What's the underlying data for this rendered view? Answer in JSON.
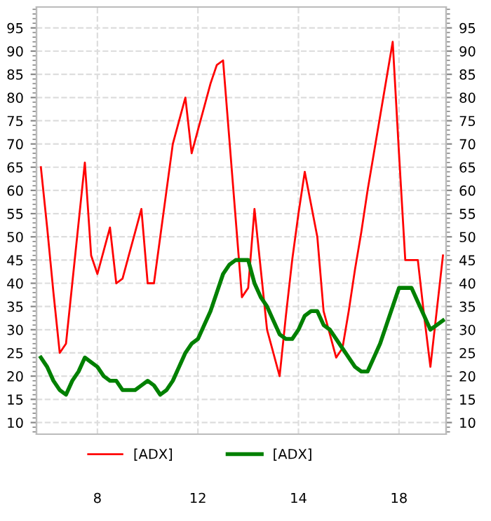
{
  "chart_data": {
    "type": "line",
    "categories": [
      null,
      null,
      null,
      null,
      null,
      null,
      null,
      null,
      null,
      "8",
      null,
      null,
      null,
      null,
      null,
      null,
      null,
      null,
      null,
      null,
      null,
      null,
      null,
      null,
      null,
      "12",
      null,
      null,
      null,
      null,
      null,
      null,
      null,
      null,
      null,
      null,
      null,
      null,
      null,
      null,
      null,
      "14",
      null,
      null,
      null,
      null,
      null,
      null,
      null,
      null,
      null,
      null,
      null,
      null,
      null,
      null,
      null,
      "18",
      null,
      null,
      null,
      null,
      null,
      null,
      null
    ],
    "ylim": [
      7.5,
      99.5
    ],
    "yticks": [
      10,
      15,
      20,
      25,
      30,
      35,
      40,
      45,
      50,
      55,
      60,
      65,
      70,
      75,
      80,
      85,
      90,
      95
    ],
    "y2lim": [
      7.5,
      99.5
    ],
    "y2ticks": [
      10,
      15,
      20,
      25,
      30,
      35,
      40,
      45,
      50,
      55,
      60,
      65,
      70,
      75,
      80,
      85,
      90,
      95
    ],
    "grid": true,
    "legend": "bottom",
    "line_style": "solid",
    "marker": "none",
    "series": [
      {
        "name": "[ADX]",
        "color": "#ff0000",
        "values": [
          65,
          52,
          38,
          25,
          27,
          40,
          53,
          66,
          46,
          42,
          47,
          52,
          40,
          41,
          46,
          51,
          56,
          40,
          40,
          50,
          60,
          70,
          75,
          80,
          68,
          73,
          78,
          83,
          87,
          88,
          71,
          54,
          37,
          39,
          56,
          43,
          30,
          25,
          20,
          33,
          45,
          55,
          64,
          57,
          50,
          34,
          29,
          24,
          26,
          34,
          43,
          51,
          60,
          68,
          76,
          84,
          92,
          68,
          45,
          45,
          45,
          33,
          22,
          34,
          46
        ]
      },
      {
        "name": "[ADX]",
        "color": "#008000",
        "values": [
          24,
          22,
          19,
          17,
          16,
          19,
          21,
          24,
          23,
          22,
          20,
          19,
          19,
          17,
          17,
          17,
          18,
          19,
          18,
          16,
          17,
          19,
          22,
          25,
          27,
          28,
          31,
          34,
          38,
          42,
          44,
          45,
          45,
          45,
          40,
          37,
          35,
          32,
          29,
          28,
          28,
          30,
          33,
          34,
          34,
          31,
          30,
          28,
          26,
          24,
          22,
          21,
          21,
          24,
          27,
          31,
          35,
          39,
          39,
          39,
          36,
          33,
          30,
          31,
          32
        ]
      }
    ]
  }
}
